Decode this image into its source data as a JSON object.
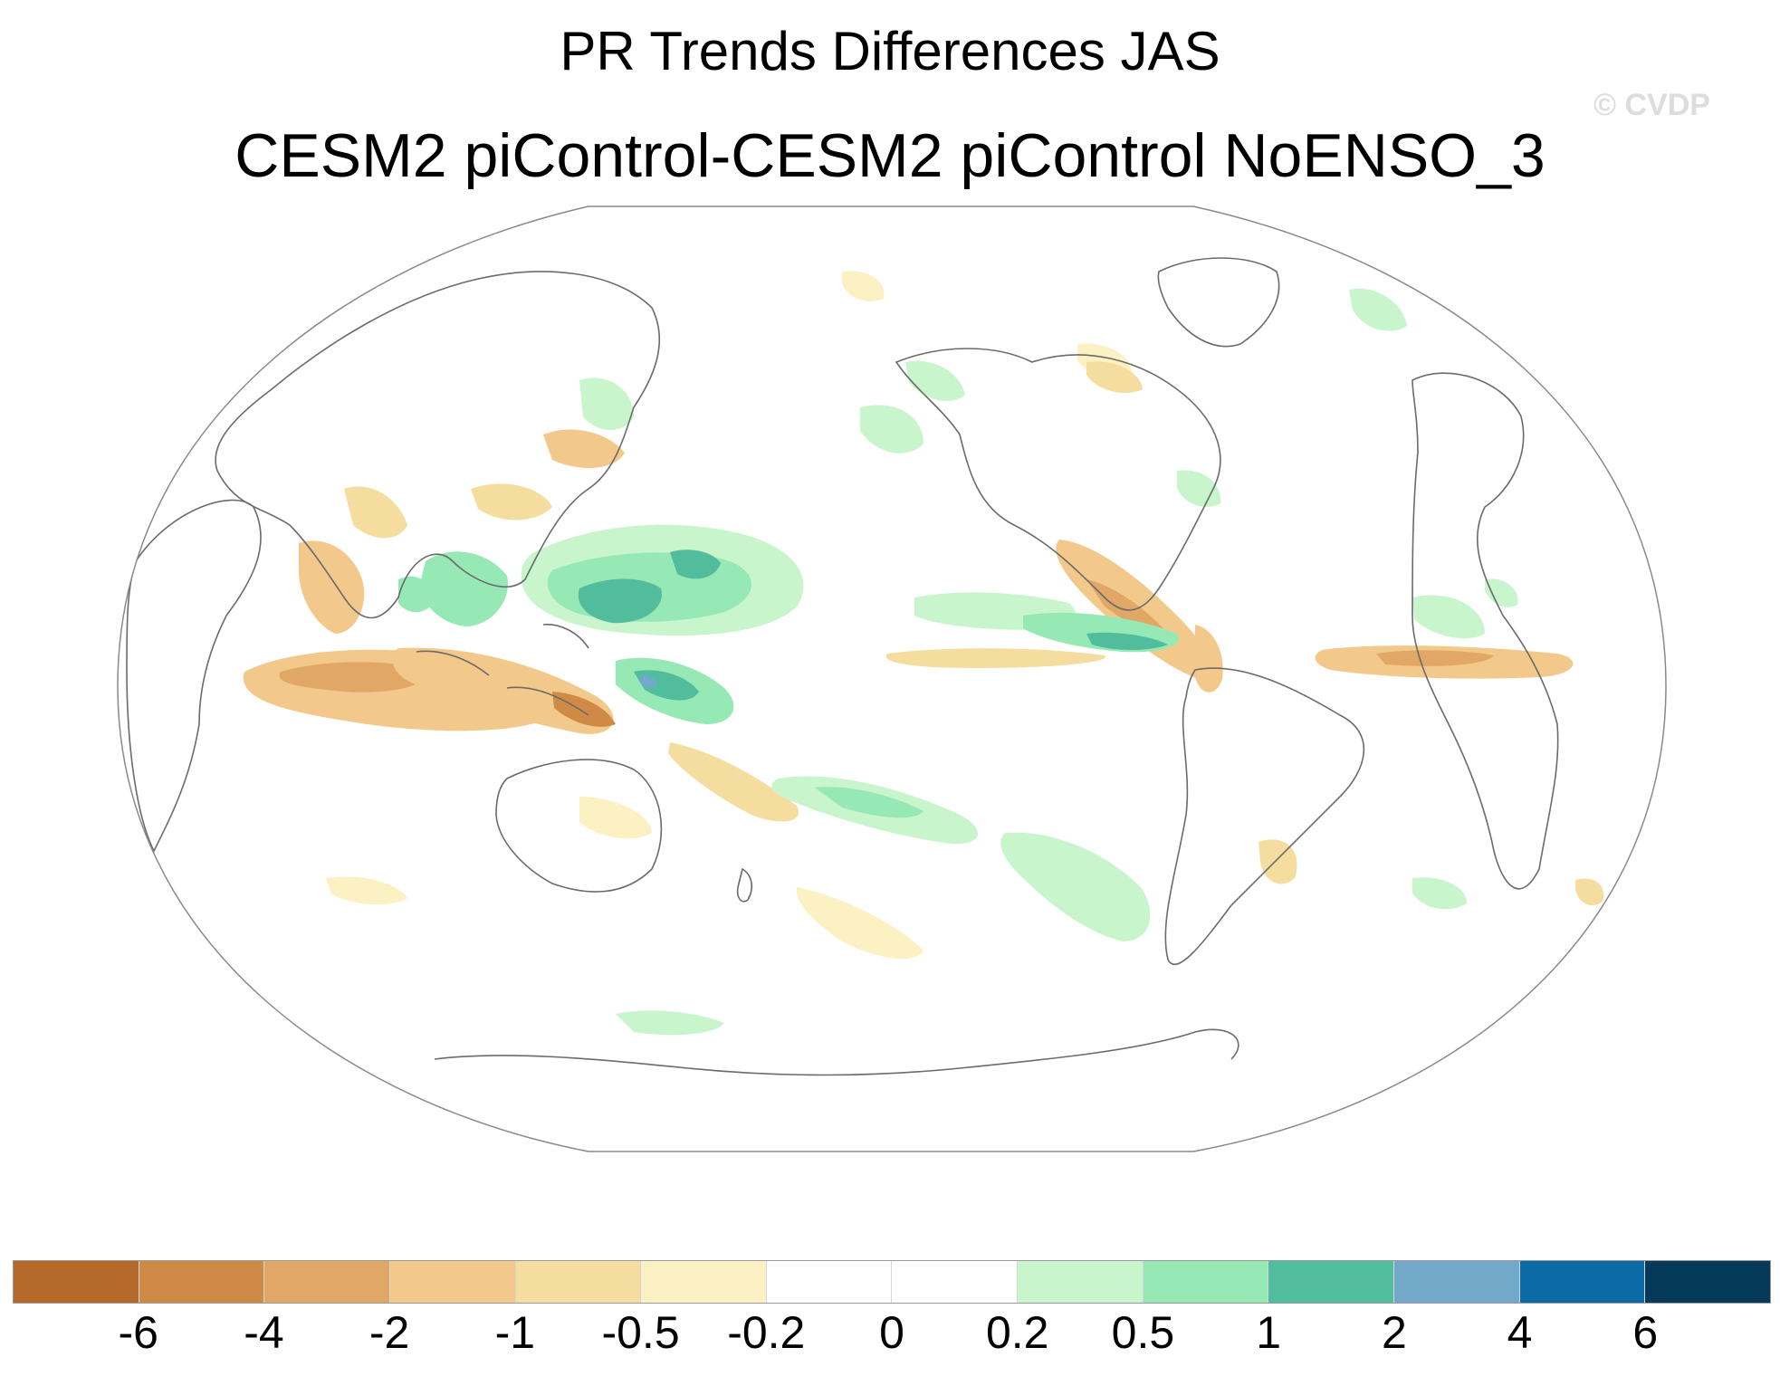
{
  "title": "PR Trends Differences JAS",
  "subtitle": "CESM2 piControl-CESM2 piControl NoENSO_3",
  "watermark": "© CVDP",
  "colors": {
    "land_outline": "#6b6b6b",
    "map_border": "#8a8a8a",
    "dry": [
      "#b5692a",
      "#cf8a45",
      "#e0a766",
      "#f2c98a",
      "#f4dd9f",
      "#fcf1c2"
    ],
    "neutral": "#ffffff",
    "wet": [
      "#c9f5cd",
      "#96e8b4",
      "#52bd9c",
      "#72a8c8",
      "#0c6aa6",
      "#063a5a"
    ]
  },
  "colorbar": {
    "colors": [
      "#b5692a",
      "#cf8a45",
      "#e0a766",
      "#f2c98a",
      "#f4dd9f",
      "#fcf1c2",
      "#ffffff",
      "#ffffff",
      "#c9f5cd",
      "#96e8b4",
      "#52bd9c",
      "#72a8c8",
      "#0c6aa6",
      "#063a5a"
    ],
    "labels": [
      "-6",
      "-4",
      "-2",
      "-1",
      "-0.5",
      "-0.2",
      "0",
      "0.2",
      "0.5",
      "1",
      "2",
      "4",
      "6"
    ]
  }
}
